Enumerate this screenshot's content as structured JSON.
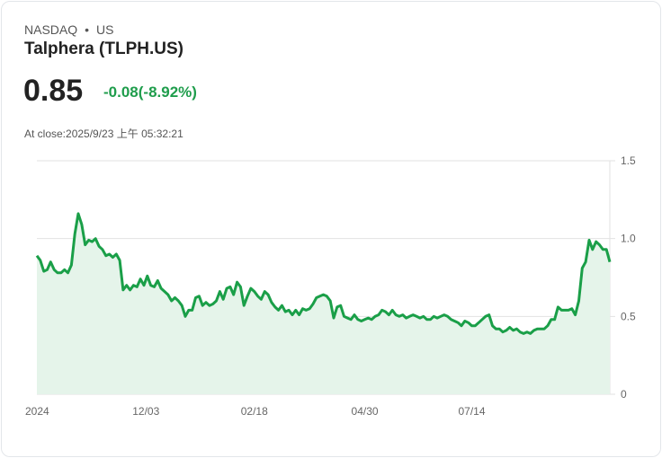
{
  "header": {
    "exchange": "NASDAQ",
    "separator": "•",
    "market": "US",
    "title": "Talphera (TLPH.US)",
    "price": "0.85",
    "change": "-0.08(-8.92%)",
    "close_time": "At close:2025/9/23 上午 05:32:21"
  },
  "colors": {
    "line": "#1a9f48",
    "fill": "#e5f4ea",
    "change": "#1f9d4c",
    "grid": "#e2e2e2"
  },
  "chart_data": {
    "type": "area",
    "title": "Talphera (TLPH.US)",
    "ylim": [
      0,
      1.5
    ],
    "yticks": [
      {
        "value": 0,
        "label": "0"
      },
      {
        "value": 0.5,
        "label": "0.5"
      },
      {
        "value": 1.0,
        "label": "1.0"
      },
      {
        "value": 1.5,
        "label": "1.5"
      }
    ],
    "xticks": [
      {
        "index": 0,
        "label": "2024"
      },
      {
        "index": 31.6,
        "label": "12/03"
      },
      {
        "index": 63,
        "label": "02/18"
      },
      {
        "index": 95,
        "label": "04/30"
      },
      {
        "index": 126,
        "label": "07/14"
      }
    ],
    "values": [
      0.89,
      0.86,
      0.79,
      0.8,
      0.85,
      0.8,
      0.78,
      0.78,
      0.8,
      0.78,
      0.83,
      1.03,
      1.16,
      1.09,
      0.96,
      0.99,
      0.98,
      1.0,
      0.95,
      0.93,
      0.89,
      0.9,
      0.88,
      0.9,
      0.86,
      0.67,
      0.7,
      0.67,
      0.7,
      0.69,
      0.74,
      0.7,
      0.76,
      0.7,
      0.69,
      0.73,
      0.68,
      0.66,
      0.64,
      0.6,
      0.62,
      0.6,
      0.57,
      0.5,
      0.54,
      0.54,
      0.62,
      0.63,
      0.57,
      0.59,
      0.57,
      0.58,
      0.6,
      0.66,
      0.61,
      0.68,
      0.69,
      0.64,
      0.72,
      0.69,
      0.57,
      0.63,
      0.68,
      0.66,
      0.63,
      0.61,
      0.66,
      0.64,
      0.59,
      0.56,
      0.54,
      0.57,
      0.53,
      0.54,
      0.51,
      0.54,
      0.51,
      0.55,
      0.54,
      0.55,
      0.58,
      0.62,
      0.63,
      0.64,
      0.63,
      0.6,
      0.49,
      0.56,
      0.57,
      0.5,
      0.49,
      0.48,
      0.51,
      0.48,
      0.47,
      0.48,
      0.49,
      0.48,
      0.5,
      0.51,
      0.54,
      0.53,
      0.51,
      0.54,
      0.51,
      0.5,
      0.51,
      0.49,
      0.5,
      0.51,
      0.5,
      0.49,
      0.5,
      0.48,
      0.48,
      0.5,
      0.49,
      0.5,
      0.51,
      0.5,
      0.48,
      0.47,
      0.46,
      0.44,
      0.47,
      0.46,
      0.44,
      0.44,
      0.46,
      0.48,
      0.5,
      0.51,
      0.44,
      0.42,
      0.42,
      0.4,
      0.41,
      0.43,
      0.41,
      0.42,
      0.4,
      0.39,
      0.4,
      0.39,
      0.41,
      0.42,
      0.42,
      0.42,
      0.44,
      0.48,
      0.48,
      0.56,
      0.54,
      0.54,
      0.54,
      0.55,
      0.51,
      0.6,
      0.81,
      0.85,
      0.99,
      0.93,
      0.98,
      0.96,
      0.93,
      0.93,
      0.85
    ]
  }
}
